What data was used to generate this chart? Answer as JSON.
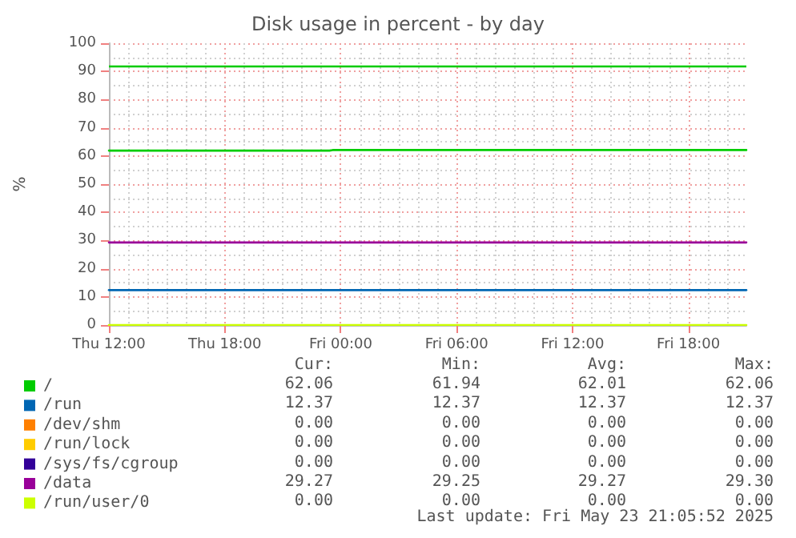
{
  "chart_data": {
    "type": "line",
    "title": "Disk usage in percent - by day",
    "ylabel": "%",
    "x": [
      "2025-05-22T12:00",
      "2025-05-23T21:00"
    ],
    "series": [
      {
        "name": "/",
        "color": "#00cc00",
        "x": [
          "2025-05-22T12:00",
          "2025-05-22T23:25",
          "2025-05-22T23:35",
          "2025-05-23T21:00"
        ],
        "values": [
          61.9,
          61.9,
          62.1,
          62.1
        ]
      },
      {
        "name": "/run",
        "color": "#0066b3",
        "values": [
          12.4,
          12.4
        ]
      },
      {
        "name": "/dev/shm",
        "color": "#ff8000",
        "values": [
          null,
          null
        ]
      },
      {
        "name": "/run/lock",
        "color": "#ffcc00",
        "values": [
          null,
          null
        ]
      },
      {
        "name": "/sys/fs/cgroup",
        "color": "#330099",
        "values": [
          null,
          null
        ]
      },
      {
        "name": "/data",
        "color": "#990099",
        "values": [
          29.3,
          29.3
        ]
      },
      {
        "name": "/run/user/0",
        "color": "#ccff00",
        "values": [
          0,
          0
        ]
      }
    ],
    "xlim": [
      "2025-05-22T12:00",
      "2025-05-23T21:00"
    ],
    "xticks": [
      {
        "value": "2025-05-22T12:00",
        "label": "Thu 12:00"
      },
      {
        "value": "2025-05-22T18:00",
        "label": "Thu 18:00"
      },
      {
        "value": "2025-05-23T00:00",
        "label": "Fri 00:00"
      },
      {
        "value": "2025-05-23T06:00",
        "label": "Fri 06:00"
      },
      {
        "value": "2025-05-23T12:00",
        "label": "Fri 12:00"
      },
      {
        "value": "2025-05-23T18:00",
        "label": "Fri 18:00"
      }
    ],
    "ylim": [
      0,
      100
    ],
    "yticks": [
      0,
      10,
      20,
      30,
      40,
      50,
      60,
      70,
      80,
      90,
      100
    ],
    "ref_lines": [
      {
        "axis": "y",
        "value": 92,
        "color": "#00cc00"
      }
    ],
    "grid": true,
    "legend": "bottom",
    "marker": "none",
    "line_style": "solid",
    "annotations": [
      "Cur:",
      "Min:",
      "Avg:",
      "Max:",
      "62.06",
      "61.94",
      "62.01",
      "62.06",
      "12.37",
      "12.37",
      "12.37",
      "12.37",
      "0.00",
      "0.00",
      "0.00",
      "0.00",
      "0.00",
      "0.00",
      "0.00",
      "0.00",
      "0.00",
      "0.00",
      "0.00",
      "0.00",
      "29.27",
      "29.25",
      "29.27",
      "29.30",
      "0.00",
      "0.00",
      "0.00",
      "0.00",
      "Last update: Fri May 23 21:05:52 2025"
    ]
  }
}
